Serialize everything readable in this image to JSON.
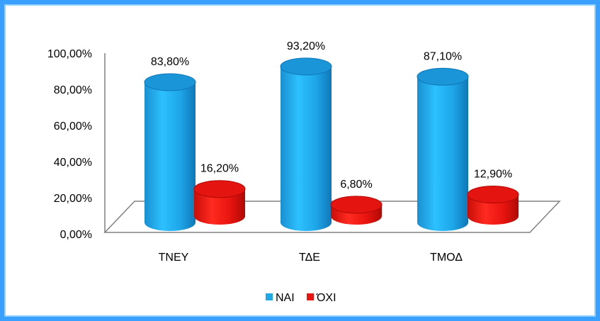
{
  "chart_data": {
    "type": "bar",
    "subtype": "3d-cylinder",
    "categories": [
      "ΤΝΕΥ",
      "ΤΔΕ",
      "ΤΜΟΔ"
    ],
    "series": [
      {
        "name": "ΝΑΙ",
        "values": [
          83.8,
          93.2,
          87.1
        ],
        "labels": [
          "83,80%",
          "93,20%",
          "87,10%"
        ],
        "color": "#1fa7e6"
      },
      {
        "name": "ΌΧΙ",
        "values": [
          16.2,
          6.8,
          12.9
        ],
        "labels": [
          "16,20%",
          "6,80%",
          "12,90%"
        ],
        "color": "#e8140f"
      }
    ],
    "y_ticks": [
      "0,00%",
      "20,00%",
      "40,00%",
      "60,00%",
      "80,00%",
      "100,00%"
    ],
    "ylim": [
      0,
      100
    ],
    "legend_position": "bottom",
    "grid": false
  },
  "colors": {
    "frame_border": "#3aa0ff",
    "axis": "#808080"
  }
}
